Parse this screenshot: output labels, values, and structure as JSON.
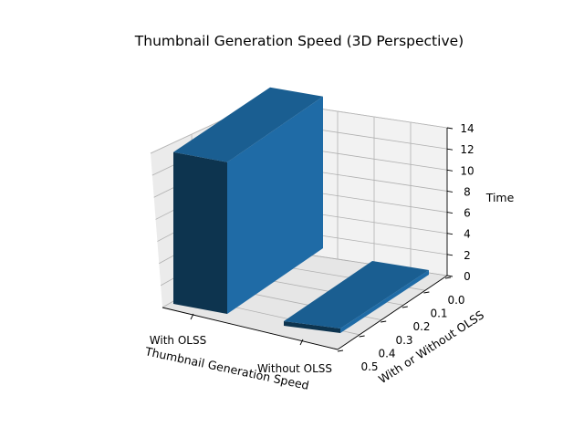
{
  "chart_data": {
    "type": "bar3d",
    "title": "Thumbnail Generation Speed (3D Perspective)",
    "xlabel": "Thumbnail Generation Speed",
    "ylabel": "With or Without OLSS",
    "zlabel": "Time",
    "categories": [
      "With OLSS",
      "Without OLSS"
    ],
    "values": [
      13.3,
      0.4
    ],
    "y_ticks": [
      "0.0",
      "0.1",
      "0.2",
      "0.3",
      "0.4",
      "0.5"
    ],
    "z_ticks": [
      "0",
      "2",
      "4",
      "6",
      "8",
      "10",
      "12",
      "14"
    ],
    "zlim": [
      0,
      14
    ],
    "grid": true,
    "colors": {
      "bar_top": "#1a5e91",
      "bar_front": "#0d344f",
      "bar_side": "#1f6ba6",
      "pane_back": "#f2f2f2",
      "pane_side": "#ebebeb",
      "pane_floor": "#e6e6e6"
    }
  }
}
